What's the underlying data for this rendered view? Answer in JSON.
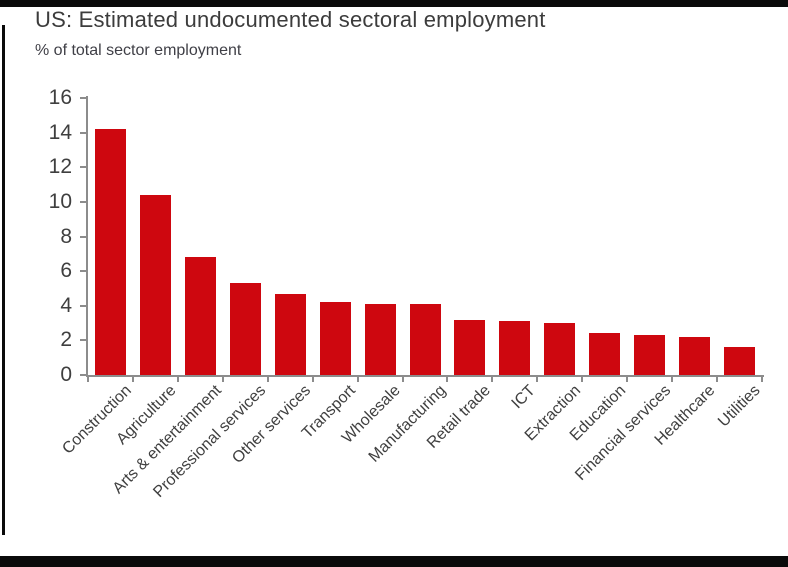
{
  "chart_data": {
    "type": "bar",
    "title": "US: Estimated undocumented sectoral employment",
    "subtitle": "% of total sector employment",
    "categories": [
      "Construction",
      "Agriculture",
      "Arts & entertainment",
      "Professional services",
      "Other services",
      "Transport",
      "Wholesale",
      "Manufacturing",
      "Retail trade",
      "ICT",
      "Extraction",
      "Education",
      "Financial services",
      "Healthcare",
      "Utilities"
    ],
    "values": [
      14.2,
      10.4,
      6.8,
      5.3,
      4.7,
      4.2,
      4.1,
      4.1,
      3.2,
      3.1,
      3.0,
      2.4,
      2.3,
      2.2,
      1.6
    ],
    "xlabel": "",
    "ylabel": "",
    "ylim": [
      0,
      16
    ],
    "yticks": [
      0,
      2,
      4,
      6,
      8,
      10,
      12,
      14,
      16
    ],
    "grid": false,
    "legend": null,
    "xtick_rotation_deg": 45,
    "bar_color": "#ce070f",
    "axis_color": "#8c8c8c",
    "text_color": "#3f3f3f",
    "border_color": "#0a0a0a"
  }
}
